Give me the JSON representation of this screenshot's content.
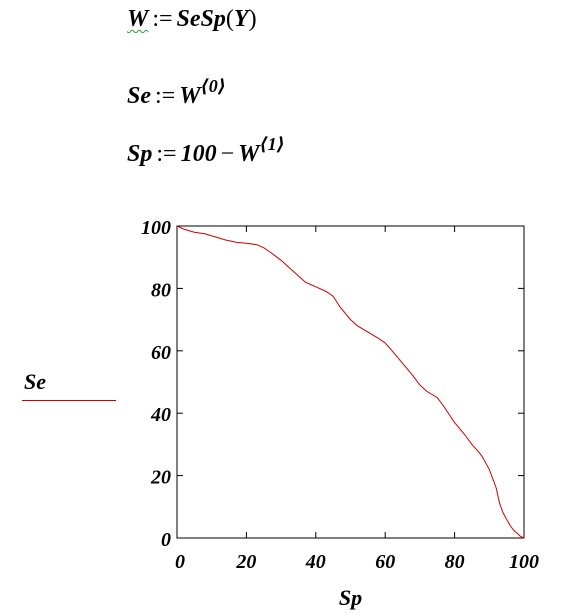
{
  "equations": [
    {
      "lhs": "W",
      "assign": ":=",
      "rhs_func": "SeSp",
      "rhs_arg": "Y"
    },
    {
      "lhs": "Se",
      "assign": ":=",
      "rhs_base": "W",
      "rhs_sup": "⟨0⟩"
    },
    {
      "lhs": "Sp",
      "assign": ":=",
      "rhs_const": "100",
      "rhs_minus": "−",
      "rhs_base": "W",
      "rhs_sup": "⟨1⟩"
    }
  ],
  "chart_data": {
    "type": "line",
    "title": "",
    "xlabel": "Sp",
    "ylabel": "Se",
    "xlim": [
      0,
      100
    ],
    "ylim": [
      0,
      100
    ],
    "xticks": [
      "0",
      "20",
      "40",
      "60",
      "80",
      "100"
    ],
    "yticks": [
      "0",
      "20",
      "40",
      "60",
      "80",
      "100"
    ],
    "grid": false,
    "legend": "left",
    "series": [
      {
        "name": "Se",
        "color": "#cc0000",
        "x": [
          0,
          2,
          5,
          8,
          11,
          14,
          17,
          20,
          23,
          25,
          27,
          30,
          33,
          35,
          37,
          40,
          43,
          45,
          47,
          50,
          52,
          55,
          58,
          60,
          62,
          65,
          68,
          70,
          72,
          75,
          77,
          80,
          83,
          85,
          87,
          88,
          90,
          91,
          92,
          93,
          94,
          95,
          96,
          97,
          98,
          99,
          100
        ],
        "y": [
          100,
          99,
          98,
          97.5,
          96.5,
          95.5,
          94.8,
          94.5,
          94,
          93,
          91.5,
          89,
          86,
          84,
          82,
          80.5,
          79,
          77.5,
          74,
          70,
          68,
          66,
          64,
          62.5,
          60,
          56,
          52,
          49,
          47,
          45,
          42,
          37,
          33,
          30,
          27.5,
          26,
          22,
          19,
          16,
          11,
          8,
          6,
          4,
          2.5,
          1.5,
          0.5,
          0
        ]
      }
    ]
  }
}
